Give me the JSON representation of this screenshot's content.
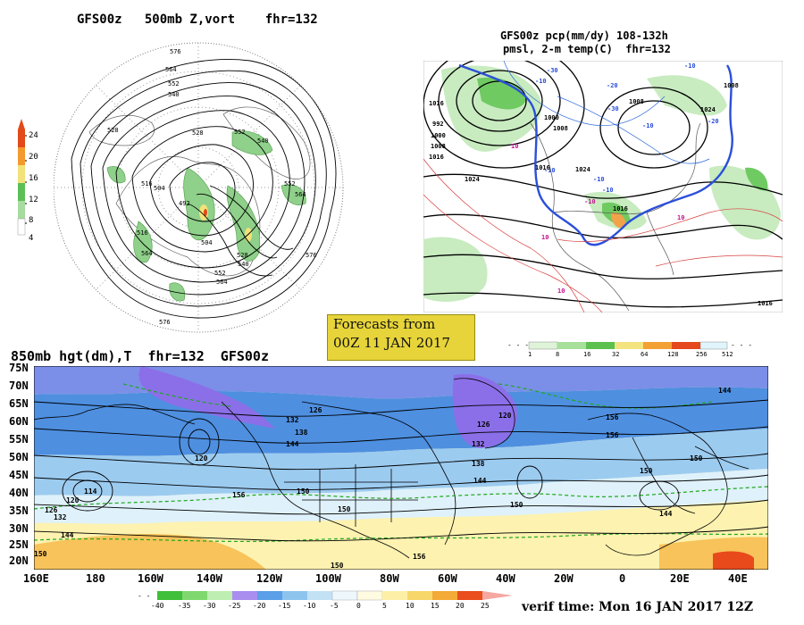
{
  "panels": {
    "top_left": {
      "title": "GFS00z   500mb Z,vort    fhr=132",
      "legend_values": [
        "24",
        "20",
        "16",
        "12",
        "8",
        "4"
      ],
      "contour_labels": [
        "576",
        "564",
        "552",
        "540",
        "528",
        "516",
        "504",
        "528",
        "552",
        "540",
        "552",
        "564",
        "576",
        "516",
        "504",
        "492",
        "528",
        "540",
        "564",
        "552",
        "564",
        "576"
      ]
    },
    "top_right": {
      "title_line1": "GFS00z pcp(mm/dy) 108-132h",
      "title_line2": "pmsl, 2-m temp(C)  fhr=132",
      "legend_values": [
        "1",
        "8",
        "16",
        "32",
        "64",
        "128",
        "256",
        "512"
      ],
      "isobar_labels": [
        "1016",
        "992",
        "1000",
        "1008",
        "1016",
        "1024",
        "1000",
        "1008",
        "1016",
        "1024",
        "1008",
        "1024",
        "1016",
        "1016",
        "1008"
      ],
      "temp_labels": [
        "-30",
        "-20",
        "-10",
        "-10",
        "-10",
        "-10",
        "-10",
        "-20",
        "-30",
        "-10",
        "10",
        "10",
        "-10",
        "10",
        "10"
      ]
    },
    "bottom": {
      "title": "850mb hgt(dm),T  fhr=132  GFS00z",
      "lat_labels": [
        "75N",
        "70N",
        "65N",
        "60N",
        "55N",
        "50N",
        "45N",
        "40N",
        "35N",
        "30N",
        "25N",
        "20N"
      ],
      "lon_labels": [
        "160E",
        "180",
        "160W",
        "140W",
        "120W",
        "100W",
        "80W",
        "60W",
        "40W",
        "20W",
        "0",
        "20E",
        "40E"
      ],
      "height_labels": [
        "126",
        "132",
        "138",
        "144",
        "126",
        "120",
        "132",
        "138",
        "144",
        "150",
        "156",
        "114",
        "120",
        "120",
        "126",
        "132",
        "144",
        "150",
        "156",
        "156",
        "150",
        "144",
        "150",
        "150",
        "144",
        "156",
        "150",
        "150"
      ],
      "legend_values": [
        "-40",
        "-35",
        "-30",
        "-25",
        "-20",
        "-15",
        "-10",
        "-5",
        "0",
        "5",
        "10",
        "15",
        "20",
        "25"
      ],
      "verif_time": "verif time: Mon 16 JAN 2017 12Z"
    },
    "forecast_box": {
      "line1": "Forecasts from",
      "line2": "00Z 11 JAN 2017"
    }
  },
  "colors": {
    "vort_scale": [
      "#ffffff",
      "#a8dba0",
      "#5cbf55",
      "#f2e27a",
      "#f39a2e",
      "#e24a1a"
    ],
    "precip_scale": [
      "#dff3d8",
      "#a6e09a",
      "#5cc04f",
      "#f3e480",
      "#f3a035",
      "#e4481c",
      "#dff4fb"
    ],
    "temp_scale": [
      "#3fbf3a",
      "#7fd86e",
      "#bfeeb2",
      "#a98ef0",
      "#5a9fe8",
      "#8dc4ee",
      "#c3e1f5",
      "#eef8fc",
      "#fffbe0",
      "#fdf0a6",
      "#f7d66a",
      "#f3aa36",
      "#e94e1c",
      "#f5a7a0"
    ]
  }
}
